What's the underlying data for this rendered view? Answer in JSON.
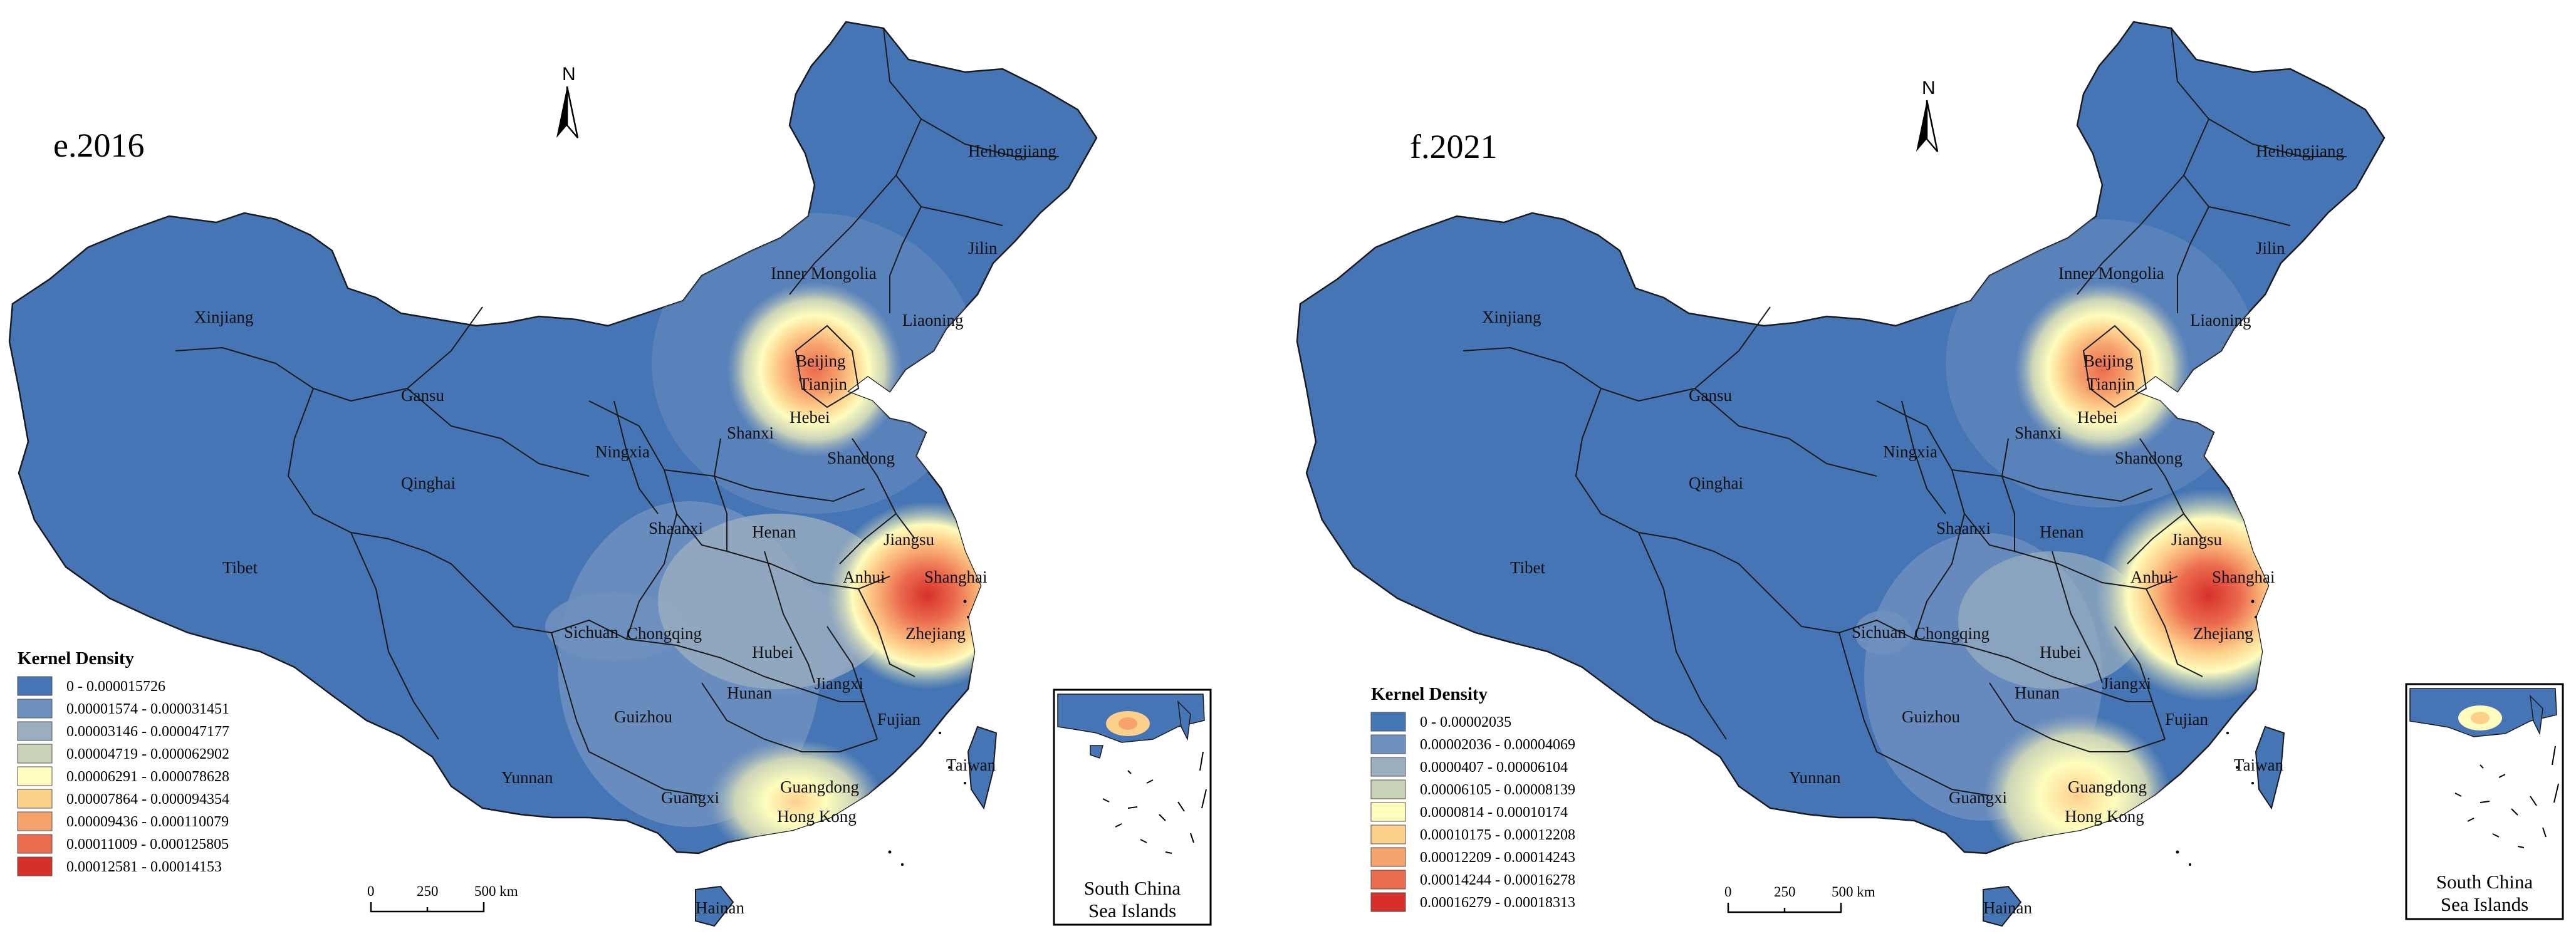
{
  "panels": [
    {
      "title": "e.2016",
      "north": "N",
      "legend": {
        "title": "Kernel Density",
        "classes": [
          {
            "label": "0 - 0.000015726",
            "color": "#4575b4"
          },
          {
            "label": "0.00001574 - 0.000031451",
            "color": "#6e90bf"
          },
          {
            "label": "0.00003146 - 0.000047177",
            "color": "#9aaebf"
          },
          {
            "label": "0.00004719 - 0.000062902",
            "color": "#c9d3b7"
          },
          {
            "label": "0.00006291 - 0.000078628",
            "color": "#fefdbd"
          },
          {
            "label": "0.00007864 - 0.000094354",
            "color": "#fdd08c"
          },
          {
            "label": "0.00009436 - 0.000110079",
            "color": "#f6a26d"
          },
          {
            "label": "0.00011009 - 0.000125805",
            "color": "#eb6b4f"
          },
          {
            "label": "0.00012581 - 0.00014153",
            "color": "#d7302a"
          }
        ]
      },
      "scale": {
        "ticks": [
          "0",
          "250",
          "500 km"
        ]
      },
      "inset_label": [
        "South China",
        "Sea Islands"
      ]
    },
    {
      "title": "f.2021",
      "north": "N",
      "legend": {
        "title": "Kernel Density",
        "classes": [
          {
            "label": "0 - 0.00002035",
            "color": "#4575b4"
          },
          {
            "label": "0.00002036 - 0.00004069",
            "color": "#6e90bf"
          },
          {
            "label": "0.0000407 - 0.00006104",
            "color": "#9aaebf"
          },
          {
            "label": "0.00006105 - 0.00008139",
            "color": "#c9d3b7"
          },
          {
            "label": "0.0000814 - 0.00010174",
            "color": "#fefdbd"
          },
          {
            "label": "0.00010175 - 0.00012208",
            "color": "#fdd08c"
          },
          {
            "label": "0.00012209 - 0.00014243",
            "color": "#f6a26d"
          },
          {
            "label": "0.00014244 - 0.00016278",
            "color": "#eb6b4f"
          },
          {
            "label": "0.00016279 - 0.00018313",
            "color": "#d7302a"
          }
        ]
      },
      "scale": {
        "ticks": [
          "0",
          "250",
          "500 km"
        ]
      },
      "inset_label": [
        "South China",
        "Sea Islands"
      ]
    }
  ],
  "provinces": [
    "Heilongjiang",
    "Jilin",
    "Liaoning",
    "Inner Mongolia",
    "Xinjiang",
    "Gansu",
    "Qinghai",
    "Tibet",
    "Ningxia",
    "Shanxi",
    "Beijing",
    "Tianjin",
    "Hebei",
    "Shandong",
    "Shaanxi",
    "Henan",
    "Jiangsu",
    "Anhui",
    "Shanghai",
    "Sichuan",
    "Chongqing",
    "Hubei",
    "Zhejiang",
    "Hunan",
    "Jiangxi",
    "Fujian",
    "Guizhou",
    "Yunnan",
    "Guangxi",
    "Guangdong",
    "Hong Kong",
    "Taiwan",
    "Hainan"
  ],
  "colors": {
    "base": "#4575b4",
    "border": "#1a1a1a",
    "background": "#ffffff"
  }
}
